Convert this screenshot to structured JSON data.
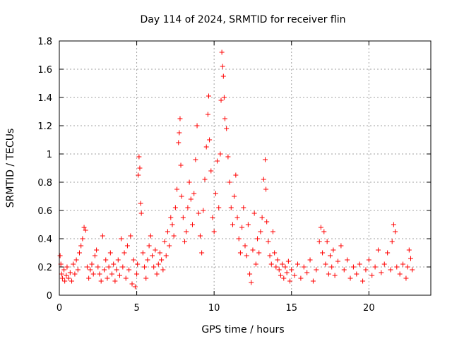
{
  "chart_data": {
    "type": "scatter",
    "title": "Day 114 of 2024, SRMTID for receiver flin",
    "xlabel": "GPS time / hours",
    "ylabel": "SRMTID / TECUs",
    "xlim": [
      0,
      24
    ],
    "ylim": [
      0,
      1.8
    ],
    "xticks": [
      0,
      5,
      10,
      15,
      20
    ],
    "xtick_labels": [
      "0",
      "5",
      "10",
      "15",
      "20"
    ],
    "yticks": [
      0,
      0.2,
      0.4,
      0.6,
      0.8,
      1,
      1.2,
      1.4,
      1.6,
      1.8
    ],
    "ytick_labels": [
      "0",
      "0.2",
      "0.4",
      "0.6",
      "0.8",
      "1",
      "1.2",
      "1.4",
      "1.6",
      "1.8"
    ],
    "grid": true,
    "marker": "+",
    "series": [
      {
        "name": "SRMTID",
        "color": "#ff0000",
        "points": [
          [
            0.05,
            0.28
          ],
          [
            0.1,
            0.22
          ],
          [
            0.15,
            0.15
          ],
          [
            0.2,
            0.12
          ],
          [
            0.3,
            0.18
          ],
          [
            0.35,
            0.1
          ],
          [
            0.45,
            0.14
          ],
          [
            0.5,
            0.2
          ],
          [
            0.6,
            0.12
          ],
          [
            0.7,
            0.16
          ],
          [
            0.8,
            0.1
          ],
          [
            0.9,
            0.22
          ],
          [
            1.0,
            0.15
          ],
          [
            1.1,
            0.25
          ],
          [
            1.2,
            0.18
          ],
          [
            1.3,
            0.3
          ],
          [
            1.4,
            0.35
          ],
          [
            1.5,
            0.4
          ],
          [
            1.6,
            0.48
          ],
          [
            1.7,
            0.46
          ],
          [
            1.8,
            0.2
          ],
          [
            1.9,
            0.12
          ],
          [
            2.0,
            0.18
          ],
          [
            2.1,
            0.22
          ],
          [
            2.2,
            0.15
          ],
          [
            2.3,
            0.28
          ],
          [
            2.4,
            0.32
          ],
          [
            2.5,
            0.2
          ],
          [
            2.6,
            0.15
          ],
          [
            2.7,
            0.1
          ],
          [
            2.8,
            0.42
          ],
          [
            2.9,
            0.18
          ],
          [
            3.0,
            0.25
          ],
          [
            3.1,
            0.12
          ],
          [
            3.2,
            0.2
          ],
          [
            3.3,
            0.3
          ],
          [
            3.4,
            0.15
          ],
          [
            3.5,
            0.22
          ],
          [
            3.6,
            0.1
          ],
          [
            3.7,
            0.18
          ],
          [
            3.8,
            0.25
          ],
          [
            3.9,
            0.14
          ],
          [
            4.0,
            0.4
          ],
          [
            4.1,
            0.2
          ],
          [
            4.2,
            0.3
          ],
          [
            4.3,
            0.12
          ],
          [
            4.4,
            0.35
          ],
          [
            4.5,
            0.18
          ],
          [
            4.6,
            0.42
          ],
          [
            4.7,
            0.08
          ],
          [
            4.8,
            0.25
          ],
          [
            4.9,
            0.06
          ],
          [
            5.0,
            0.15
          ],
          [
            5.05,
            0.22
          ],
          [
            5.1,
            0.85
          ],
          [
            5.15,
            0.98
          ],
          [
            5.2,
            0.9
          ],
          [
            5.25,
            0.65
          ],
          [
            5.3,
            0.58
          ],
          [
            5.4,
            0.3
          ],
          [
            5.5,
            0.2
          ],
          [
            5.6,
            0.12
          ],
          [
            5.7,
            0.25
          ],
          [
            5.8,
            0.35
          ],
          [
            5.9,
            0.42
          ],
          [
            6.0,
            0.28
          ],
          [
            6.1,
            0.2
          ],
          [
            6.2,
            0.32
          ],
          [
            6.3,
            0.15
          ],
          [
            6.4,
            0.22
          ],
          [
            6.5,
            0.3
          ],
          [
            6.6,
            0.25
          ],
          [
            6.7,
            0.18
          ],
          [
            6.8,
            0.38
          ],
          [
            6.9,
            0.28
          ],
          [
            7.0,
            0.45
          ],
          [
            7.1,
            0.35
          ],
          [
            7.2,
            0.55
          ],
          [
            7.3,
            0.5
          ],
          [
            7.4,
            0.42
          ],
          [
            7.5,
            0.62
          ],
          [
            7.6,
            0.75
          ],
          [
            7.7,
            1.08
          ],
          [
            7.75,
            1.15
          ],
          [
            7.8,
            1.25
          ],
          [
            7.85,
            0.92
          ],
          [
            7.9,
            0.7
          ],
          [
            8.0,
            0.55
          ],
          [
            8.1,
            0.38
          ],
          [
            8.2,
            0.45
          ],
          [
            8.3,
            0.62
          ],
          [
            8.4,
            0.8
          ],
          [
            8.5,
            0.68
          ],
          [
            8.6,
            0.5
          ],
          [
            8.7,
            0.72
          ],
          [
            8.8,
            0.96
          ],
          [
            8.9,
            1.2
          ],
          [
            9.0,
            0.58
          ],
          [
            9.1,
            0.42
          ],
          [
            9.2,
            0.3
          ],
          [
            9.3,
            0.6
          ],
          [
            9.4,
            0.82
          ],
          [
            9.5,
            1.05
          ],
          [
            9.6,
            1.28
          ],
          [
            9.65,
            1.41
          ],
          [
            9.7,
            1.1
          ],
          [
            9.8,
            0.88
          ],
          [
            9.9,
            0.55
          ],
          [
            10.0,
            0.45
          ],
          [
            10.1,
            0.72
          ],
          [
            10.2,
            0.95
          ],
          [
            10.3,
            0.62
          ],
          [
            10.4,
            1.0
          ],
          [
            10.45,
            1.38
          ],
          [
            10.5,
            1.72
          ],
          [
            10.55,
            1.62
          ],
          [
            10.6,
            1.55
          ],
          [
            10.65,
            1.4
          ],
          [
            10.7,
            1.25
          ],
          [
            10.8,
            1.18
          ],
          [
            10.9,
            0.98
          ],
          [
            11.0,
            0.8
          ],
          [
            11.1,
            0.62
          ],
          [
            11.2,
            0.5
          ],
          [
            11.3,
            0.7
          ],
          [
            11.4,
            0.85
          ],
          [
            11.5,
            0.55
          ],
          [
            11.6,
            0.4
          ],
          [
            11.7,
            0.3
          ],
          [
            11.8,
            0.48
          ],
          [
            11.9,
            0.62
          ],
          [
            12.0,
            0.35
          ],
          [
            12.1,
            0.28
          ],
          [
            12.2,
            0.5
          ],
          [
            12.3,
            0.15
          ],
          [
            12.4,
            0.09
          ],
          [
            12.5,
            0.32
          ],
          [
            12.6,
            0.58
          ],
          [
            12.7,
            0.22
          ],
          [
            12.8,
            0.4
          ],
          [
            12.9,
            0.3
          ],
          [
            13.0,
            0.45
          ],
          [
            13.1,
            0.55
          ],
          [
            13.2,
            0.82
          ],
          [
            13.3,
            0.96
          ],
          [
            13.35,
            0.75
          ],
          [
            13.4,
            0.52
          ],
          [
            13.5,
            0.38
          ],
          [
            13.6,
            0.28
          ],
          [
            13.7,
            0.22
          ],
          [
            13.8,
            0.45
          ],
          [
            13.9,
            0.3
          ],
          [
            14.0,
            0.2
          ],
          [
            14.1,
            0.25
          ],
          [
            14.2,
            0.18
          ],
          [
            14.3,
            0.14
          ],
          [
            14.4,
            0.22
          ],
          [
            14.5,
            0.12
          ],
          [
            14.6,
            0.2
          ],
          [
            14.7,
            0.16
          ],
          [
            14.8,
            0.24
          ],
          [
            14.9,
            0.1
          ],
          [
            15.0,
            0.18
          ],
          [
            15.2,
            0.14
          ],
          [
            15.4,
            0.22
          ],
          [
            15.6,
            0.12
          ],
          [
            15.8,
            0.2
          ],
          [
            16.0,
            0.16
          ],
          [
            16.2,
            0.25
          ],
          [
            16.4,
            0.1
          ],
          [
            16.6,
            0.18
          ],
          [
            16.8,
            0.38
          ],
          [
            16.9,
            0.48
          ],
          [
            17.0,
            0.3
          ],
          [
            17.1,
            0.45
          ],
          [
            17.2,
            0.22
          ],
          [
            17.3,
            0.38
          ],
          [
            17.4,
            0.15
          ],
          [
            17.5,
            0.28
          ],
          [
            17.6,
            0.2
          ],
          [
            17.7,
            0.32
          ],
          [
            17.8,
            0.14
          ],
          [
            18.0,
            0.24
          ],
          [
            18.2,
            0.35
          ],
          [
            18.4,
            0.18
          ],
          [
            18.6,
            0.25
          ],
          [
            18.8,
            0.12
          ],
          [
            19.0,
            0.2
          ],
          [
            19.2,
            0.15
          ],
          [
            19.4,
            0.22
          ],
          [
            19.6,
            0.1
          ],
          [
            19.8,
            0.18
          ],
          [
            20.0,
            0.25
          ],
          [
            20.2,
            0.14
          ],
          [
            20.4,
            0.2
          ],
          [
            20.6,
            0.32
          ],
          [
            20.8,
            0.16
          ],
          [
            21.0,
            0.22
          ],
          [
            21.2,
            0.3
          ],
          [
            21.4,
            0.18
          ],
          [
            21.5,
            0.38
          ],
          [
            21.6,
            0.5
          ],
          [
            21.7,
            0.45
          ],
          [
            21.8,
            0.2
          ],
          [
            22.0,
            0.15
          ],
          [
            22.2,
            0.22
          ],
          [
            22.4,
            0.12
          ],
          [
            22.5,
            0.2
          ],
          [
            22.6,
            0.32
          ],
          [
            22.7,
            0.26
          ],
          [
            22.8,
            0.18
          ]
        ]
      }
    ]
  }
}
